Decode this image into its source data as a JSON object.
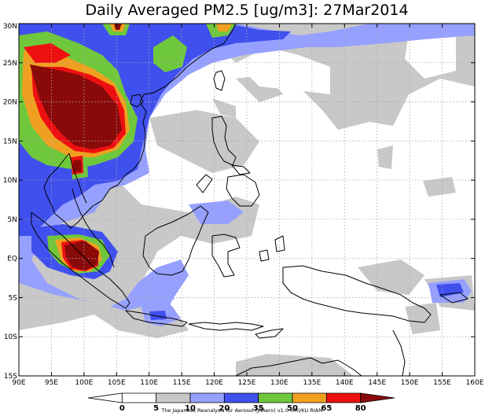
{
  "title": "Daily Averaged PM2.5 [ug/m3]: 27Mar2014",
  "credit": "The Japanese Reanalysis for Aerosol (JRAero) v1.0 MRI/KU RIAM",
  "map": {
    "lon_range": [
      90,
      160
    ],
    "lat_range": [
      -15,
      30
    ],
    "lon_ticks": [
      "90E",
      "95E",
      "100E",
      "105E",
      "110E",
      "115E",
      "120E",
      "125E",
      "130E",
      "135E",
      "140E",
      "145E",
      "150E",
      "155E",
      "160E"
    ],
    "lat_ticks": [
      "30N",
      "25N",
      "20N",
      "15N",
      "10N",
      "5N",
      "EQ",
      "5S",
      "10S",
      "15S"
    ],
    "grid": "dotted"
  },
  "colorbar": {
    "levels": [
      "0",
      "5",
      "10",
      "20",
      "35",
      "50",
      "65",
      "80"
    ],
    "colors": [
      "#ffffff",
      "#ffffff",
      "#c8c8c8",
      "#96a0ff",
      "#4050ee",
      "#6fc83c",
      "#f0a020",
      "#ee1010",
      "#8a0a0a"
    ]
  },
  "regions": [
    {
      "name": "background",
      "color": "#ffffff"
    }
  ]
}
